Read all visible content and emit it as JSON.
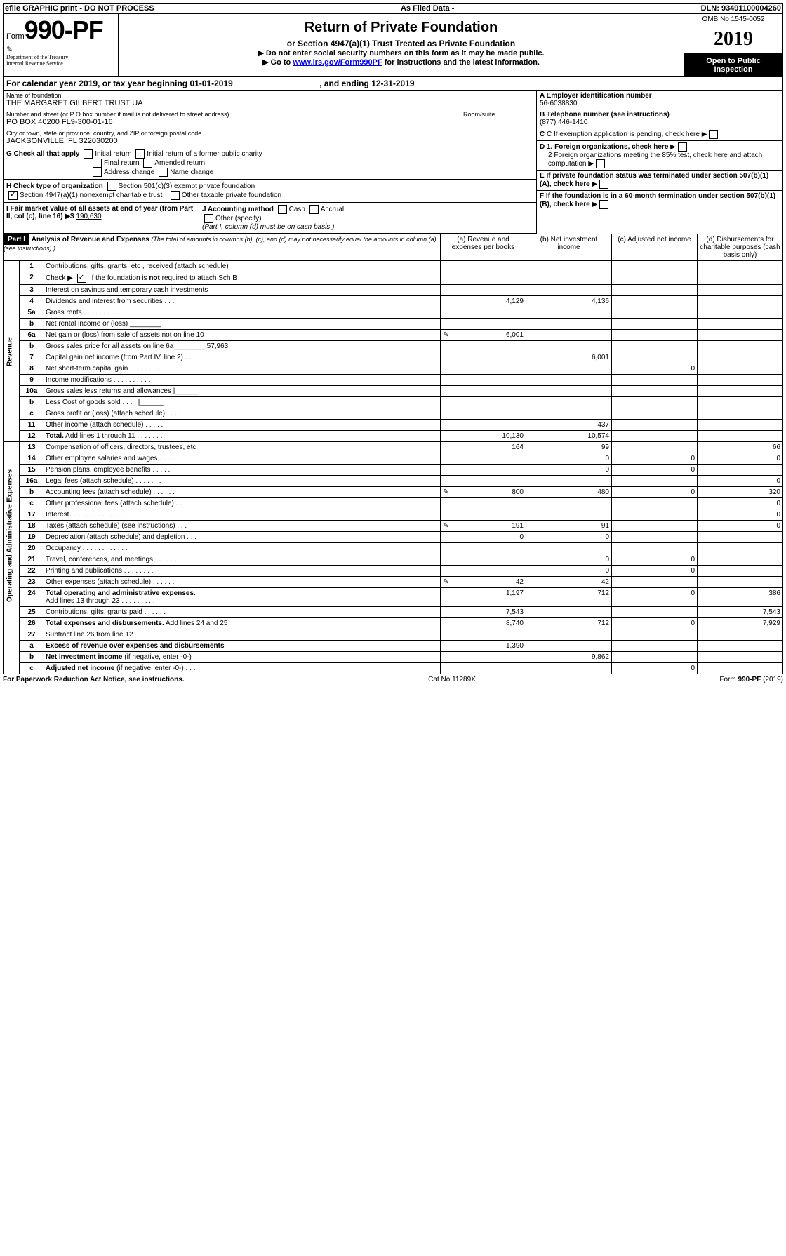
{
  "banner": {
    "efile": "efile GRAPHIC print - DO NOT PROCESS",
    "asfiled": "As Filed Data -",
    "dln": "DLN: 93491100004260"
  },
  "header": {
    "form_prefix": "Form",
    "form_number": "990-PF",
    "dept1": "Department of the Treasury",
    "dept2": "Internal Revenue Service",
    "title": "Return of Private Foundation",
    "subtitle": "or Section 4947(a)(1) Trust Treated as Private Foundation",
    "instr1": "▶ Do not enter social security numbers on this form as it may be made public.",
    "instr2_pre": "▶ Go to ",
    "instr2_link": "www.irs.gov/Form990PF",
    "instr2_post": " for instructions and the latest information.",
    "omb": "OMB No 1545-0052",
    "year": "2019",
    "open": "Open to Public Inspection"
  },
  "calyear": {
    "text": "For calendar year 2019, or tax year beginning 01-01-2019",
    "ending": ", and ending 12-31-2019"
  },
  "info": {
    "name_label": "Name of foundation",
    "name": "THE MARGARET GILBERT TRUST UA",
    "addr_label": "Number and street (or P O  box number if mail is not delivered to street address)",
    "addr": "PO BOX 40200 FL9-300-01-16",
    "room_label": "Room/suite",
    "city_label": "City or town, state or province, country, and ZIP or foreign postal code",
    "city": "JACKSONVILLE, FL  322030200",
    "a_label": "A Employer identification number",
    "a_val": "56-6038830",
    "b_label": "B Telephone number (see instructions)",
    "b_val": "(877) 446-1410",
    "c_label": "C If exemption application is pending, check here",
    "d1_label": "D 1. Foreign organizations, check here",
    "d2_label": "2 Foreign organizations meeting the 85% test, check here and attach computation",
    "e_label": "E  If private foundation status was terminated under section 507(b)(1)(A), check here",
    "f_label": "F  If the foundation is in a 60-month termination under section 507(b)(1)(B), check here"
  },
  "checks": {
    "g_label": "G Check all that apply",
    "g_opts": [
      "Initial return",
      "Initial return of a former public charity",
      "Final return",
      "Amended return",
      "Address change",
      "Name change"
    ],
    "h_label": "H Check type of organization",
    "h_opt1": "Section 501(c)(3) exempt private foundation",
    "h_opt2": "Section 4947(a)(1) nonexempt charitable trust",
    "h_opt3": "Other taxable private foundation",
    "i_label": "I Fair market value of all assets at end of year (from Part II, col  (c), line 16) ▶$ ",
    "i_val": "190,630",
    "j_label": "J Accounting method",
    "j_opts": [
      "Cash",
      "Accrual",
      "Other (specify)"
    ],
    "j_note": "(Part I, column (d) must be on cash basis )"
  },
  "part1": {
    "label": "Part I",
    "title": "Analysis of Revenue and Expenses",
    "title_note": "(The total of amounts in columns (b), (c), and (d) may not necessarily equal the amounts in column (a) (see instructions) )",
    "col_a": "(a) Revenue and expenses per books",
    "col_b": "(b) Net investment income",
    "col_c": "(c) Adjusted net income",
    "col_d": "(d) Disbursements for charitable purposes (cash basis only)"
  },
  "sections": {
    "revenue": "Revenue",
    "expenses": "Operating and Administrative Expenses"
  },
  "rows": [
    {
      "n": "1",
      "d": "",
      "a": "",
      "b": "",
      "c": ""
    },
    {
      "n": "2",
      "d": "",
      "a": "",
      "b": "",
      "c": ""
    },
    {
      "n": "3",
      "d": "",
      "a": "",
      "b": "",
      "c": ""
    },
    {
      "n": "4",
      "d": "",
      "a": "4,129",
      "b": "4,136",
      "c": ""
    },
    {
      "n": "5a",
      "d": "",
      "a": "",
      "b": "",
      "c": ""
    },
    {
      "n": "b",
      "d": "",
      "a": "",
      "b": "",
      "c": ""
    },
    {
      "n": "6a",
      "d": "",
      "a": "6,001",
      "b": "",
      "c": "",
      "icon": true
    },
    {
      "n": "b",
      "d": "",
      "sub": "57,963",
      "a": "",
      "b": "",
      "c": ""
    },
    {
      "n": "7",
      "d": "",
      "a": "",
      "b": "6,001",
      "c": ""
    },
    {
      "n": "8",
      "d": "",
      "a": "",
      "b": "",
      "c": "0"
    },
    {
      "n": "9",
      "d": "",
      "a": "",
      "b": "",
      "c": ""
    },
    {
      "n": "10a",
      "d": "",
      "a": "",
      "b": "",
      "c": ""
    },
    {
      "n": "b",
      "d": "",
      "a": "",
      "b": "",
      "c": ""
    },
    {
      "n": "c",
      "d": "",
      "a": "",
      "b": "",
      "c": ""
    },
    {
      "n": "11",
      "d": "",
      "a": "",
      "b": "437",
      "c": ""
    },
    {
      "n": "12",
      "d": "",
      "a": "10,130",
      "b": "10,574",
      "c": "",
      "bold": true
    }
  ],
  "exp_rows": [
    {
      "n": "13",
      "d": "66",
      "a": "164",
      "b": "99",
      "c": ""
    },
    {
      "n": "14",
      "d": "0",
      "a": "",
      "b": "0",
      "c": "0"
    },
    {
      "n": "15",
      "d": "",
      "a": "",
      "b": "0",
      "c": "0"
    },
    {
      "n": "16a",
      "d": "0",
      "a": "",
      "b": "",
      "c": ""
    },
    {
      "n": "b",
      "d": "320",
      "a": "800",
      "b": "480",
      "c": "0",
      "icon": true
    },
    {
      "n": "c",
      "d": "0",
      "a": "",
      "b": "",
      "c": ""
    },
    {
      "n": "17",
      "d": "0",
      "a": "",
      "b": "",
      "c": ""
    },
    {
      "n": "18",
      "d": "0",
      "a": "191",
      "b": "91",
      "c": "",
      "icon": true
    },
    {
      "n": "19",
      "d": "",
      "a": "0",
      "b": "0",
      "c": ""
    },
    {
      "n": "20",
      "d": "",
      "a": "",
      "b": "",
      "c": ""
    },
    {
      "n": "21",
      "d": "",
      "a": "",
      "b": "0",
      "c": "0"
    },
    {
      "n": "22",
      "d": "",
      "a": "",
      "b": "0",
      "c": "0"
    },
    {
      "n": "23",
      "d": "",
      "a": "42",
      "b": "42",
      "c": "",
      "icon": true
    },
    {
      "n": "24",
      "d": "386",
      "a": "1,197",
      "b": "712",
      "c": "0",
      "bold": true
    },
    {
      "n": "25",
      "d": "7,543",
      "a": "7,543",
      "b": "",
      "c": ""
    },
    {
      "n": "26",
      "d": "7,929",
      "a": "8,740",
      "b": "712",
      "c": "0",
      "bold": true
    }
  ],
  "net_rows": [
    {
      "n": "27",
      "d": "",
      "a": "",
      "b": "",
      "c": ""
    },
    {
      "n": "a",
      "d": "",
      "a": "1,390",
      "b": "",
      "c": "",
      "bold": true
    },
    {
      "n": "b",
      "d": "",
      "a": "",
      "b": "9,862",
      "c": "",
      "bold": true
    },
    {
      "n": "c",
      "d": "",
      "a": "",
      "b": "",
      "c": "0",
      "bold": true
    }
  ],
  "footer": {
    "left": "For Paperwork Reduction Act Notice, see instructions.",
    "center": "Cat  No  11289X",
    "right": "Form 990-PF (2019)"
  }
}
